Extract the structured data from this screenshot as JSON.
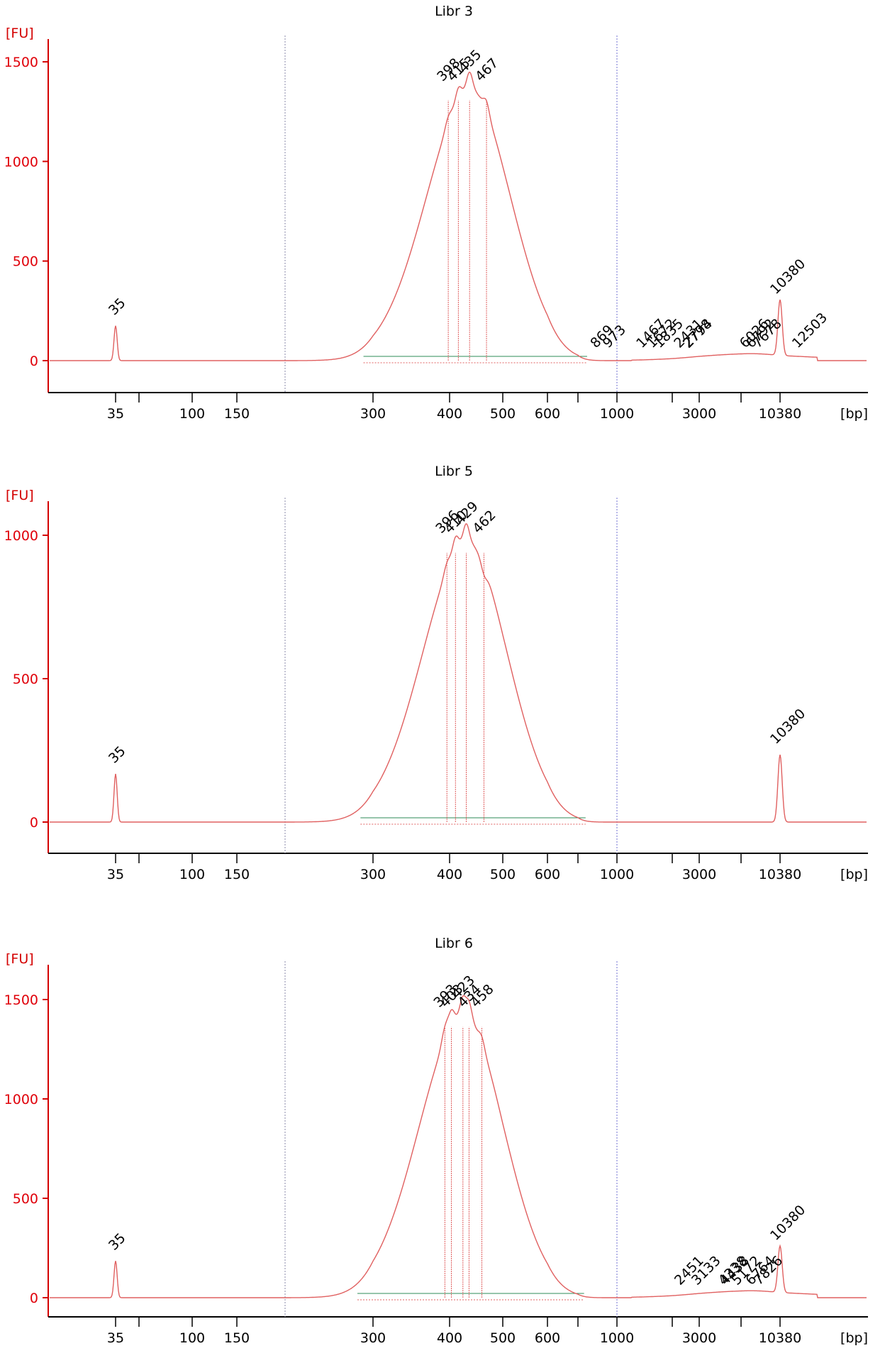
{
  "chart_data": [
    {
      "type": "line",
      "title": "Libr 3",
      "ylabel": "[FU]",
      "xlabel": "[bp]",
      "x_scale": "nonlinear (migration-time based)",
      "ylim": [
        -105,
        1580
      ],
      "yticks": [
        0,
        500,
        1000,
        1500
      ],
      "x_ticks": [
        "35",
        "100",
        "150",
        "300",
        "400",
        "500",
        "600",
        "1000",
        "3000",
        "10380"
      ],
      "lower_marker": {
        "label": "35",
        "bp": 35,
        "fu": 175,
        "color": "#1a7a1a"
      },
      "upper_marker": {
        "label": "10380",
        "bp": 10380,
        "fu": 280,
        "color": "#8a2be2"
      },
      "main_peak": {
        "bp": 435,
        "fu": 1420,
        "sub_peaks": [
          {
            "bp": 398,
            "fu": 1340
          },
          {
            "bp": 415,
            "fu": 1375
          },
          {
            "bp": 467,
            "fu": 1370
          }
        ]
      },
      "peak_labels": [
        {
          "label": "398",
          "bp": 398
        },
        {
          "label": "415",
          "bp": 415
        },
        {
          "label": "435",
          "bp": 435
        },
        {
          "label": "467",
          "bp": 467
        },
        {
          "label": "869",
          "bp": 869
        },
        {
          "label": "973",
          "bp": 973
        },
        {
          "label": "1467",
          "bp": 1467
        },
        {
          "label": "1672",
          "bp": 1672
        },
        {
          "label": "1835",
          "bp": 1835
        },
        {
          "label": "2431",
          "bp": 2431
        },
        {
          "label": "2778",
          "bp": 2778
        },
        {
          "label": "2794",
          "bp": 2794
        },
        {
          "label": "6026",
          "bp": 6026
        },
        {
          "label": "6792",
          "bp": 6792
        },
        {
          "label": "7678",
          "bp": 7678
        },
        {
          "label": "12503",
          "bp": 12503
        }
      ]
    },
    {
      "type": "line",
      "title": "Libr 5",
      "ylabel": "[FU]",
      "xlabel": "[bp]",
      "x_scale": "nonlinear (migration-time based)",
      "ylim": [
        -105,
        1040
      ],
      "yticks": [
        0,
        500,
        1000
      ],
      "x_ticks": [
        "35",
        "100",
        "150",
        "300",
        "400",
        "500",
        "600",
        "1000",
        "3000",
        "10380"
      ],
      "lower_marker": {
        "label": "35",
        "bp": 35,
        "fu": 168,
        "color": "#1a7a1a"
      },
      "upper_marker": {
        "label": "10380",
        "bp": 10380,
        "fu": 235,
        "color": "#8a2be2"
      },
      "main_peak": {
        "bp": 429,
        "fu": 1020,
        "sub_peaks": [
          {
            "bp": 396,
            "fu": 965
          },
          {
            "bp": 410,
            "fu": 1000
          },
          {
            "bp": 462,
            "fu": 870
          }
        ]
      },
      "peak_labels": [
        {
          "label": "396",
          "bp": 396
        },
        {
          "label": "410",
          "bp": 410
        },
        {
          "label": "429",
          "bp": 429
        },
        {
          "label": "462",
          "bp": 462
        }
      ]
    },
    {
      "type": "line",
      "title": "Libr 6",
      "ylabel": "[FU]",
      "xlabel": "[bp]",
      "x_scale": "nonlinear (migration-time based)",
      "ylim": [
        -105,
        1580
      ],
      "yticks": [
        0,
        500,
        1000,
        1500
      ],
      "x_ticks": [
        "35",
        "100",
        "150",
        "300",
        "400",
        "500",
        "600",
        "1000",
        "3000",
        "10380"
      ],
      "lower_marker": {
        "label": "35",
        "bp": 35,
        "fu": 185,
        "color": "#1a7a1a"
      },
      "upper_marker": {
        "label": "10380",
        "bp": 10380,
        "fu": 235,
        "color": "#8a2be2"
      },
      "main_peak": {
        "bp": 423,
        "fu": 1480,
        "sub_peaks": [
          {
            "bp": 393,
            "fu": 1440
          },
          {
            "bp": 403,
            "fu": 1460
          },
          {
            "bp": 434,
            "fu": 1465
          },
          {
            "bp": 458,
            "fu": 1400
          }
        ]
      },
      "peak_labels": [
        {
          "label": "393",
          "bp": 393
        },
        {
          "label": "403",
          "bp": 403
        },
        {
          "label": "423",
          "bp": 423
        },
        {
          "label": "434",
          "bp": 434
        },
        {
          "label": "458",
          "bp": 458
        },
        {
          "label": "2451",
          "bp": 2451
        },
        {
          "label": "3133",
          "bp": 3133
        },
        {
          "label": "4338",
          "bp": 4338
        },
        {
          "label": "4438",
          "bp": 4438
        },
        {
          "label": "5172",
          "bp": 5172
        },
        {
          "label": "6764",
          "bp": 6764
        },
        {
          "label": "7826",
          "bp": 7826
        }
      ]
    }
  ],
  "colors": {
    "trace": "#e06060",
    "axis": "#d40000",
    "ylabels": "#e0000a",
    "baseline": "#2e8b57",
    "dotted_grid": "#8a8aa8",
    "lower_marker": "#1a7a1a",
    "upper_marker": "#8a2be2"
  }
}
